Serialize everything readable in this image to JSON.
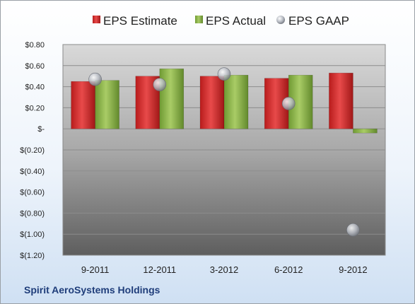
{
  "company": "Spirit AeroSystems Holdings",
  "colors": {
    "estimate": "#d62b2b",
    "actual": "#8fb848",
    "gaap": "#b8bcc4"
  },
  "chart_data": {
    "type": "bar",
    "categories": [
      "9-2011",
      "12-2011",
      "3-2012",
      "6-2012",
      "9-2012"
    ],
    "series": [
      {
        "name": "EPS Estimate",
        "values": [
          0.45,
          0.5,
          0.5,
          0.48,
          0.53
        ]
      },
      {
        "name": "EPS Actual",
        "values": [
          0.46,
          0.57,
          0.51,
          0.51,
          -0.04
        ]
      },
      {
        "name": "EPS GAAP",
        "values": [
          0.47,
          0.42,
          0.52,
          0.24,
          -0.96
        ]
      }
    ],
    "y_ticks": [
      0.8,
      0.6,
      0.4,
      0.2,
      0,
      -0.2,
      -0.4,
      -0.6,
      -0.8,
      -1.0,
      -1.2
    ],
    "y_tick_labels": [
      "$0.80",
      "$0.60",
      "$0.40",
      "$0.20",
      "$-",
      "$(0.20)",
      "$(0.40)",
      "$(0.60)",
      "$(0.80)",
      "$(1.00)",
      "$(1.20)"
    ],
    "ylim": [
      -1.2,
      0.8
    ],
    "legend_position": "top",
    "grid": true
  }
}
